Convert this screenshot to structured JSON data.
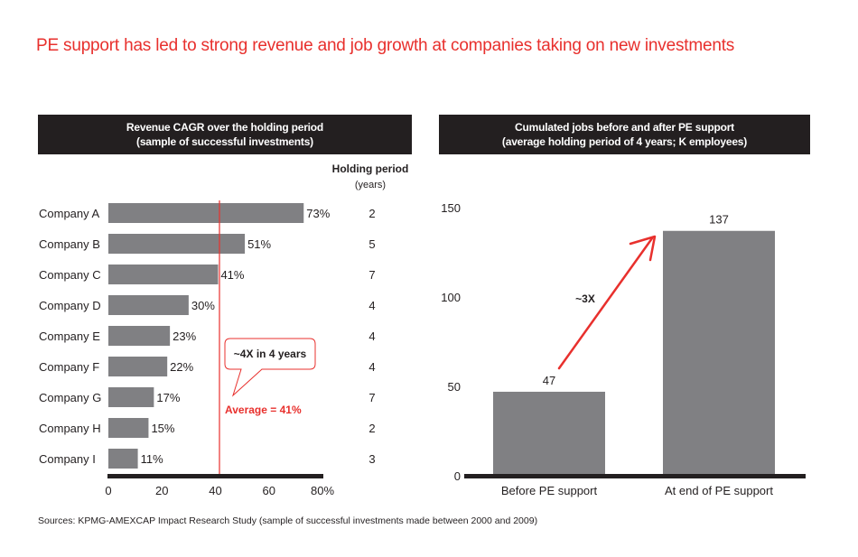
{
  "title": "PE support has led to strong revenue and job growth at companies taking on new investments",
  "source": "Sources: KPMG-AMEXCAP Impact Research Study (sample of successful investments made between 2000 and 2009)",
  "colors": {
    "accent": "#e8302d",
    "bar": "#808083",
    "header_bg": "#231f20",
    "text": "#231f20"
  },
  "chart_data": [
    {
      "type": "bar",
      "orientation": "horizontal",
      "title_line1": "Revenue CAGR over the holding period",
      "title_line2": "(sample of successful investments)",
      "categories": [
        "Company A",
        "Company B",
        "Company C",
        "Company D",
        "Company E",
        "Company F",
        "Company G",
        "Company H",
        "Company I"
      ],
      "values": [
        73,
        51,
        41,
        30,
        23,
        22,
        17,
        15,
        11
      ],
      "value_labels": [
        "73%",
        "51%",
        "41%",
        "30%",
        "23%",
        "22%",
        "17%",
        "15%",
        "11%"
      ],
      "xlim": [
        0,
        80
      ],
      "x_ticks": [
        "0",
        "20",
        "40",
        "60",
        "80%"
      ],
      "x_tick_values": [
        0,
        20,
        40,
        60,
        80
      ],
      "secondary_column": {
        "header": "Holding period",
        "subheader": "(years)",
        "values": [
          "2",
          "5",
          "7",
          "4",
          "4",
          "4",
          "7",
          "2",
          "3"
        ]
      },
      "reference_line": {
        "value": 41,
        "label": "Average = 41%"
      },
      "callout": "~4X in 4 years"
    },
    {
      "type": "bar",
      "orientation": "vertical",
      "title_line1": "Cumulated jobs before and after PE support",
      "title_line2": "(average holding period of 4 years; K employees)",
      "categories": [
        "Before PE support",
        "At end of PE support"
      ],
      "values": [
        47,
        137
      ],
      "value_labels": [
        "47",
        "137"
      ],
      "ylim": [
        0,
        150
      ],
      "y_ticks": [
        "0",
        "50",
        "100",
        "150"
      ],
      "y_tick_values": [
        0,
        50,
        100,
        150
      ],
      "annotation": {
        "label": "~3X",
        "type": "arrow",
        "from": "Before PE support",
        "to": "At end of PE support"
      }
    }
  ]
}
